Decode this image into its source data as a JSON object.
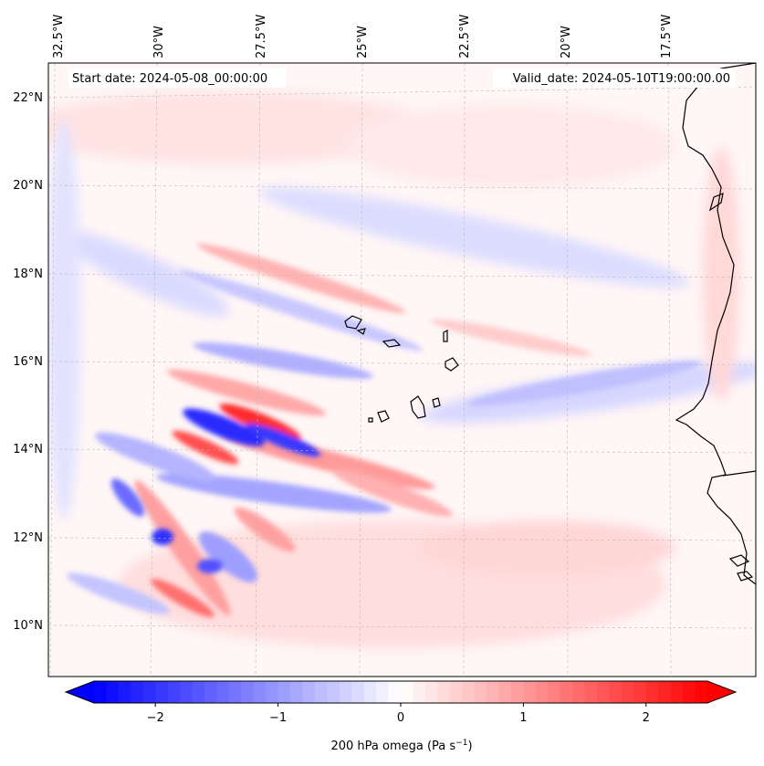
{
  "map": {
    "start_date": "Start date: 2024-05-08_00:00:00",
    "valid_date": "Valid_date: 2024-05-10T19:00:00.00",
    "lon_labels": [
      "32.5°W",
      "30°W",
      "27.5°W",
      "25°W",
      "22.5°W",
      "20°W",
      "17.5°W"
    ],
    "lat_labels": [
      "22°N",
      "20°N",
      "18°N",
      "16°N",
      "14°N",
      "12°N",
      "10°N"
    ]
  },
  "colorbar": {
    "label_prefix": "200 hPa omega (Pa s",
    "label_exp": "−1",
    "label_suffix": ")",
    "ticks": [
      "−2",
      "−1",
      "0",
      "1",
      "2"
    ],
    "tick_values": [
      -2,
      -1,
      0,
      1,
      2
    ],
    "vmin": -2.5,
    "vmax": 2.5,
    "colormap": "bwr",
    "neg_color": "#0000ff",
    "mid_color": "#ffffff",
    "pos_color": "#ff0000"
  },
  "chart_data": {
    "type": "heatmap",
    "variable": "200 hPa omega",
    "units": "Pa s^-1",
    "lon_ticks": [
      -32.5,
      -30,
      -27.5,
      -25,
      -22.5,
      -20,
      -17.5
    ],
    "lat_ticks": [
      22,
      20,
      18,
      16,
      14,
      12,
      10
    ],
    "color_range": [
      -2.5,
      2.5
    ],
    "features": [
      {
        "name": "strong-ascent-core",
        "lon": -26.8,
        "lat": 14.6,
        "value": -2.3
      },
      {
        "name": "strong-descent-core",
        "lon": -26.0,
        "lat": 14.6,
        "value": 2.2
      },
      {
        "name": "ascent-pocket",
        "lon": -29.0,
        "lat": 11.9,
        "value": -2.0
      },
      {
        "name": "descent-band-south",
        "lon": -28.0,
        "lat": 12.5,
        "value": 1.0
      }
    ]
  }
}
